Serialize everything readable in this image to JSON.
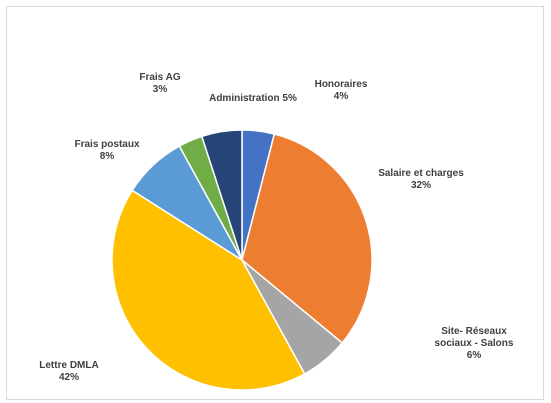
{
  "chart_data": {
    "type": "pie",
    "title": "",
    "legend": "none",
    "slices": [
      {
        "name": "Honoraires",
        "value": 4,
        "label": "4%",
        "color": "#4472c4"
      },
      {
        "name": "Salaire et charges",
        "value": 32,
        "label": "32%",
        "color": "#ed7d31"
      },
      {
        "name": "Site- Réseaux sociaux - Salons",
        "value": 6,
        "label": "6%",
        "color": "#a5a5a5"
      },
      {
        "name": "Lettre DMLA",
        "value": 42,
        "label": "42%",
        "color": "#ffc000"
      },
      {
        "name": "Frais postaux",
        "value": 8,
        "label": "8%",
        "color": "#5b9bd5"
      },
      {
        "name": "Frais AG",
        "value": 3,
        "label": "3%",
        "color": "#70ad47"
      },
      {
        "name": "Administration",
        "value": 5,
        "label": "5%",
        "color": "#264478"
      }
    ]
  }
}
